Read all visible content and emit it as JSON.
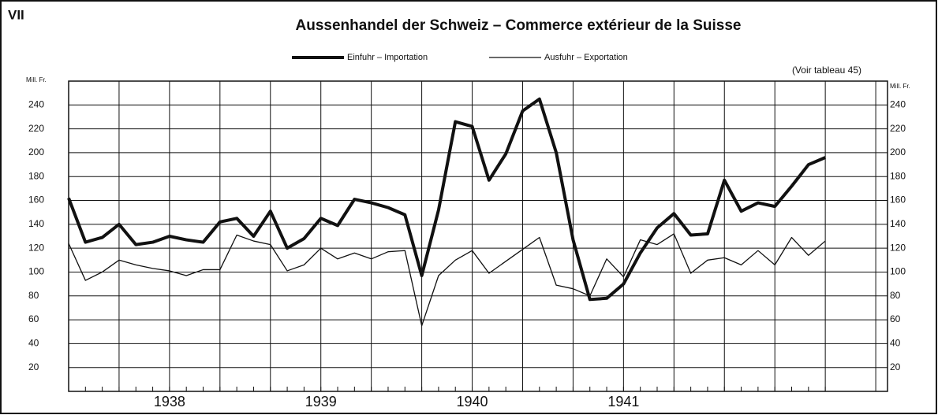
{
  "chart_data": {
    "type": "line",
    "panel_label": "VII",
    "title": "Aussenhandel der Schweiz – Commerce extérieur de la Suisse",
    "note": "(Voir tableau 45)",
    "ylabel": "Mill. Fr.",
    "y2label": "Mill. Fr.",
    "x": [
      0,
      1,
      2,
      3,
      4,
      5,
      6,
      7,
      8,
      9,
      10,
      11,
      12,
      13,
      14,
      15,
      16,
      17,
      18,
      19,
      20,
      21,
      22,
      23,
      24,
      25,
      26,
      27,
      28,
      29,
      30,
      31,
      32,
      33,
      34,
      35,
      36,
      37,
      38,
      39,
      40,
      41,
      42,
      43,
      44,
      45
    ],
    "xlim": [
      0,
      48.7
    ],
    "xticks": [
      {
        "value": 6,
        "label": "1938"
      },
      {
        "value": 15,
        "label": "1939"
      },
      {
        "value": 24,
        "label": "1940"
      },
      {
        "value": 33,
        "label": "1941"
      }
    ],
    "xgrid": [
      0,
      3,
      6,
      9,
      12,
      15,
      18,
      21,
      24,
      27,
      30,
      33,
      36,
      39,
      42,
      45,
      48
    ],
    "ylim": [
      0,
      260
    ],
    "yticks": [
      20,
      40,
      60,
      80,
      100,
      120,
      140,
      160,
      180,
      200,
      220,
      240
    ],
    "y2lim": [
      0,
      260
    ],
    "y2ticks": [
      20,
      40,
      60,
      80,
      100,
      120,
      140,
      160,
      180,
      200,
      220,
      240
    ],
    "grid": true,
    "series": [
      {
        "name": "Einfuhr – Importation",
        "color": "#111",
        "width": 4,
        "values": [
          162,
          125,
          129,
          140,
          123,
          125,
          130,
          127,
          125,
          142,
          145,
          130,
          151,
          120,
          128,
          145,
          139,
          161,
          158,
          154,
          148,
          97,
          152,
          226,
          222,
          177,
          199,
          235,
          245,
          200,
          127,
          77,
          78,
          90,
          116,
          137,
          149,
          131,
          132,
          177,
          151,
          158,
          155,
          172,
          190,
          196
        ]
      },
      {
        "name": "Ausfuhr – Exportation",
        "color": "#111",
        "width": 1.3,
        "values": [
          124,
          93,
          100,
          110,
          106,
          103,
          101,
          97,
          102,
          102,
          131,
          126,
          123,
          101,
          106,
          120,
          111,
          116,
          111,
          117,
          118,
          55,
          97,
          110,
          118,
          99,
          109,
          119,
          129,
          89,
          86,
          80,
          111,
          96,
          127,
          123,
          132,
          99,
          110,
          112,
          106,
          118,
          106,
          129,
          114,
          126
        ]
      }
    ]
  }
}
